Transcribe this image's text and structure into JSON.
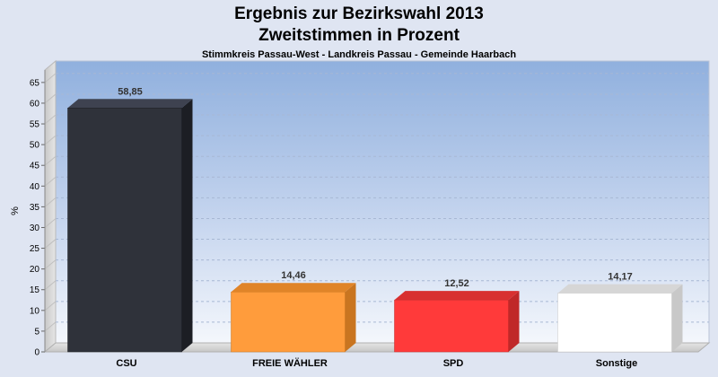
{
  "chart_data": {
    "type": "bar",
    "title": "Ergebnis zur Bezirkswahl 2013",
    "title_line2": "Zweitstimmen in Prozent",
    "subtitle": "Stimmkreis Passau-West - Landkreis Passau - Gemeinde Haarbach",
    "ylabel": "%",
    "xlabel": "",
    "ylim": [
      0,
      68
    ],
    "yticks": [
      0,
      5,
      10,
      15,
      20,
      25,
      30,
      35,
      40,
      45,
      50,
      55,
      60,
      65
    ],
    "grid": true,
    "legend": "none",
    "categories": [
      "CSU",
      "FREIE WÄHLER",
      "SPD",
      "Sonstige"
    ],
    "values": [
      58.85,
      14.46,
      12.52,
      14.17
    ],
    "value_labels": [
      "58,85",
      "14,46",
      "12,52",
      "14,17"
    ],
    "colors": [
      "#2f323a",
      "#ff9c3c",
      "#ff3a3a",
      "#ffffff"
    ],
    "side_colors": [
      "#1c1e24",
      "#c97520",
      "#c02828",
      "#c8c8c8"
    ],
    "top_colors": [
      "#3e4250",
      "#e08428",
      "#d83030",
      "#d6d6d6"
    ]
  }
}
